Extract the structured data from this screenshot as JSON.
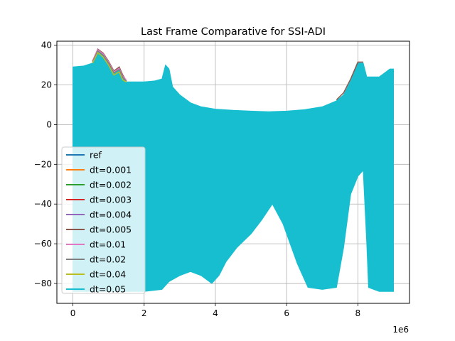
{
  "chart_data": {
    "type": "line",
    "title": "Last Frame Comparative for SSI-ADI",
    "xlabel": "",
    "ylabel": "",
    "x_offset_label": "1e6",
    "xlim": [
      -0.45,
      9.45
    ],
    "ylim": [
      -90,
      42
    ],
    "x_ticks": [
      0,
      2,
      4,
      6,
      8
    ],
    "x_tick_labels": [
      "0",
      "2",
      "4",
      "6",
      "8"
    ],
    "y_ticks": [
      -80,
      -60,
      -40,
      -20,
      0,
      20,
      40
    ],
    "y_tick_labels": [
      "−80",
      "−60",
      "−40",
      "−20",
      "0",
      "20",
      "40"
    ],
    "grid": true,
    "legend_position": "lower-left",
    "series": [
      {
        "name": "ref",
        "color": "#1f77b4"
      },
      {
        "name": "dt=0.001",
        "color": "#ff7f0e"
      },
      {
        "name": "dt=0.002",
        "color": "#2ca02c"
      },
      {
        "name": "dt=0.003",
        "color": "#d62728"
      },
      {
        "name": "dt=0.004",
        "color": "#9467bd"
      },
      {
        "name": "dt=0.005",
        "color": "#8c564b"
      },
      {
        "name": "dt=0.01",
        "color": "#e377c2"
      },
      {
        "name": "dt=0.02",
        "color": "#7f7f7f"
      },
      {
        "name": "dt=0.04",
        "color": "#bcbd22"
      },
      {
        "name": "dt=0.05",
        "color": "#17becf"
      }
    ],
    "envelope_top": {
      "x": [
        0,
        0.3,
        0.55,
        0.7,
        0.85,
        1.0,
        1.15,
        1.3,
        1.4,
        1.5,
        1.7,
        2.0,
        2.3,
        2.5,
        2.6,
        2.7,
        2.8,
        3.0,
        3.3,
        3.6,
        4.0,
        4.5,
        5.0,
        5.5,
        6.0,
        6.5,
        7.0,
        7.4,
        7.6,
        7.8,
        8.0,
        8.15,
        8.25,
        8.3,
        8.6,
        8.9,
        9.0
      ],
      "y": [
        29,
        29.5,
        31,
        37,
        35,
        31.5,
        26,
        28,
        24,
        21.5,
        21.5,
        21.5,
        22,
        23,
        30,
        28,
        19,
        15,
        11,
        9,
        7.8,
        7.2,
        6.8,
        6.5,
        6.8,
        7.5,
        9,
        12,
        15,
        22,
        31,
        31,
        24,
        24,
        24,
        28,
        28
      ]
    },
    "envelope_bottom": {
      "x": [
        0,
        0.5,
        1.0,
        1.5,
        2.0,
        2.5,
        2.7,
        3.0,
        3.3,
        3.6,
        3.9,
        4.1,
        4.3,
        4.6,
        5.0,
        5.3,
        5.6,
        5.9,
        6.3,
        6.6,
        7.0,
        7.4,
        7.6,
        7.8,
        8.0,
        8.15,
        8.25,
        8.3,
        8.6,
        9.0
      ],
      "y": [
        -84,
        -84,
        -84,
        -84,
        -84,
        -83,
        -79,
        -76,
        -74,
        -76,
        -80,
        -76,
        -69,
        -62,
        -55,
        -48,
        -40,
        -50,
        -70,
        -82,
        -83,
        -82,
        -62,
        -35,
        -26,
        -23,
        -60,
        -82,
        -84,
        -84
      ]
    },
    "envelope_color": "#17becf",
    "peak_lines": {
      "x": [
        0.55,
        0.7,
        0.85,
        1.0,
        1.15,
        1.3,
        1.4,
        1.5
      ],
      "y_upper": [
        32,
        38,
        36,
        32,
        27,
        29,
        25,
        22
      ],
      "y_lower": [
        31,
        36.2,
        34,
        30,
        25,
        26.5,
        22.5,
        21.5
      ]
    },
    "right_peak_lines": {
      "x": [
        7.4,
        7.6,
        7.8,
        8.0,
        8.15
      ],
      "y": [
        12.5,
        16,
        23,
        31.5,
        31.5
      ]
    }
  }
}
